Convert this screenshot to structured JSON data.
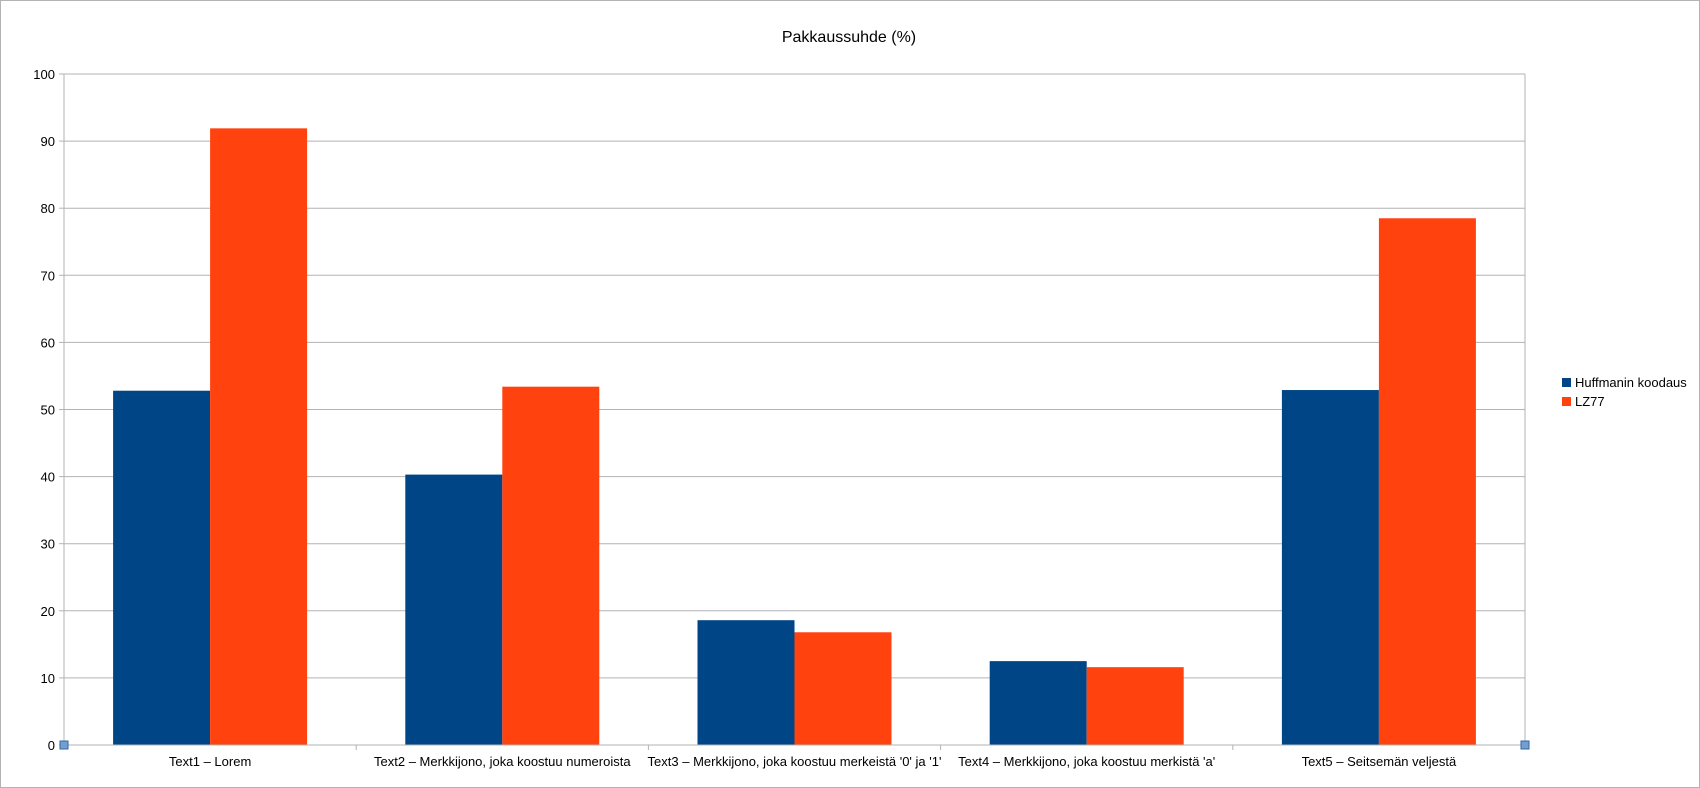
{
  "chart_data": {
    "type": "bar",
    "title": "Pakkaussuhde (%)",
    "categories": [
      "Text1 – Lorem",
      "Text2 – Merkkijono, joka koostuu numeroista",
      "Text3 – Merkkijono, joka koostuu merkeistä '0' ja '1'",
      "Text4 – Merkkijono, joka koostuu merkistä 'a'",
      "Text5 – Seitsemän veljestä"
    ],
    "series": [
      {
        "name": "Huffmanin koodaus",
        "color": "#004586",
        "values": [
          52.8,
          40.3,
          18.6,
          12.5,
          52.9
        ]
      },
      {
        "name": "LZ77",
        "color": "#ff420e",
        "values": [
          91.9,
          53.4,
          16.8,
          11.6,
          78.5
        ]
      }
    ],
    "ylim": [
      0,
      100
    ],
    "yticks": [
      "0",
      "10",
      "20",
      "30",
      "40",
      "50",
      "60",
      "70",
      "80",
      "90",
      "100"
    ],
    "grid": true,
    "legend_position": "right"
  }
}
